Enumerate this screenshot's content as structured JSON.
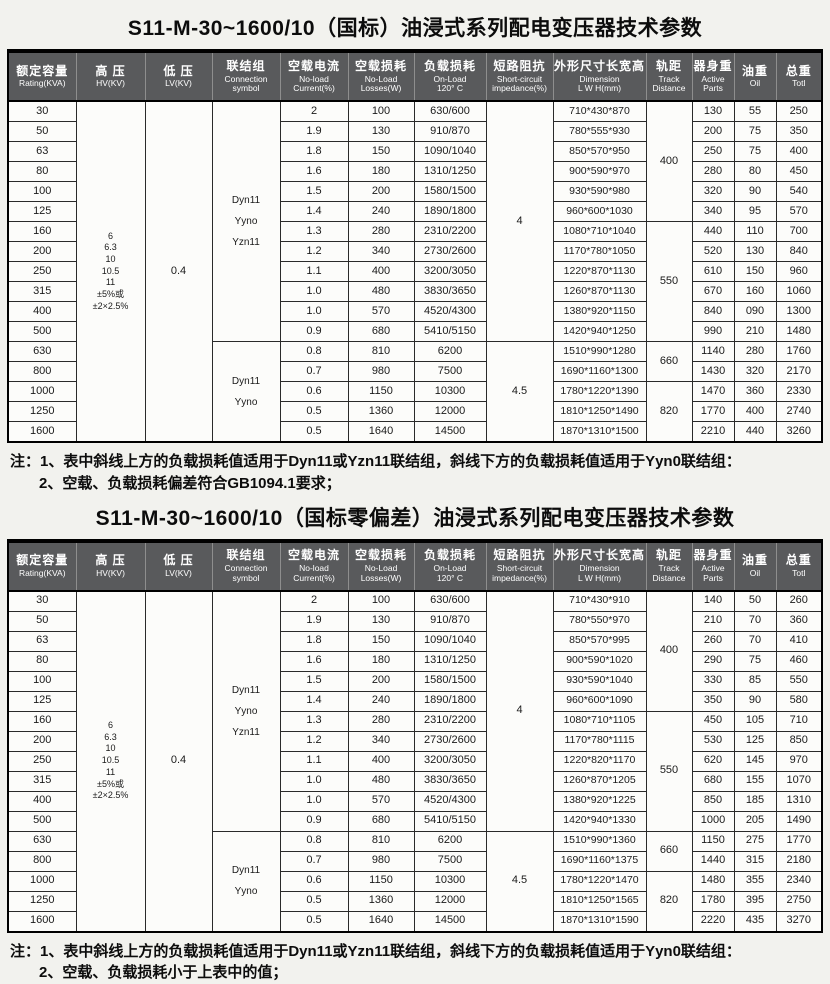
{
  "colors": {
    "header_bg": "#595a5c",
    "header_text": "#ffffff",
    "table_border": "#000000",
    "page_bg": "#f2f2ee"
  },
  "columns": [
    {
      "key": "rating",
      "zh": "额定容量",
      "en": "Rating(KVA)"
    },
    {
      "key": "hv",
      "zh": "高 压",
      "en": "HV(KV)"
    },
    {
      "key": "lv",
      "zh": "低 压",
      "en": "LV(KV)"
    },
    {
      "key": "connection",
      "zh": "联结组",
      "en": "Connection\nsymbol"
    },
    {
      "key": "noload_current",
      "zh": "空载电流",
      "en": "No-load\nCurrent(%)"
    },
    {
      "key": "noload_losses",
      "zh": "空载损耗",
      "en": "No-Load\nLosses(W)"
    },
    {
      "key": "onload",
      "zh": "负载损耗",
      "en": "On-Load\n120° C"
    },
    {
      "key": "impedance",
      "zh": "短路阻抗",
      "en": "Short-circuit\nimpedance(%)"
    },
    {
      "key": "dimension",
      "zh": "外形尺寸长宽高",
      "en": "Dimension\nL W H(mm)"
    },
    {
      "key": "track",
      "zh": "轨距",
      "en": "Track\nDistance"
    },
    {
      "key": "active_parts",
      "zh": "器身重",
      "en": "Active\nParts"
    },
    {
      "key": "oil",
      "zh": "油重",
      "en": "Oil"
    },
    {
      "key": "total",
      "zh": "总重",
      "en": "Totl"
    }
  ],
  "tables": [
    {
      "title": "S11-M-30~1600/10（国标）油浸式系列配电变压器技术参数",
      "rows": {
        "rating": [
          "30",
          "50",
          "63",
          "80",
          "100",
          "125",
          "160",
          "200",
          "250",
          "315",
          "400",
          "500",
          "630",
          "800",
          "1000",
          "1250",
          "1600"
        ],
        "noload_current": [
          "2",
          "1.9",
          "1.8",
          "1.6",
          "1.5",
          "1.4",
          "1.3",
          "1.2",
          "1.1",
          "1.0",
          "1.0",
          "0.9",
          "0.8",
          "0.7",
          "0.6",
          "0.5",
          "0.5"
        ],
        "noload_losses": [
          "100",
          "130",
          "150",
          "180",
          "200",
          "240",
          "280",
          "340",
          "400",
          "480",
          "570",
          "680",
          "810",
          "980",
          "1150",
          "1360",
          "1640"
        ],
        "onload": [
          "630/600",
          "910/870",
          "1090/1040",
          "1310/1250",
          "1580/1500",
          "1890/1800",
          "2310/2200",
          "2730/2600",
          "3200/3050",
          "3830/3650",
          "4520/4300",
          "5410/5150",
          "6200",
          "7500",
          "10300",
          "12000",
          "14500"
        ],
        "dimension": [
          "710*430*870",
          "780*555*930",
          "850*570*950",
          "900*590*970",
          "930*590*980",
          "960*600*1030",
          "1080*710*1040",
          "1170*780*1050",
          "1220*870*1130",
          "1260*870*1130",
          "1380*920*1150",
          "1420*940*1250",
          "1510*990*1280",
          "1690*1160*1300",
          "1780*1220*1390",
          "1810*1250*1490",
          "1870*1310*1500"
        ],
        "active_parts": [
          "130",
          "200",
          "250",
          "280",
          "320",
          "340",
          "440",
          "520",
          "610",
          "670",
          "840",
          "990",
          "1140",
          "1430",
          "1470",
          "1770",
          "2210"
        ],
        "oil": [
          "55",
          "75",
          "75",
          "80",
          "90",
          "95",
          "110",
          "130",
          "150",
          "160",
          "090",
          "210",
          "280",
          "320",
          "360",
          "400",
          "440"
        ],
        "total": [
          "250",
          "350",
          "400",
          "450",
          "540",
          "570",
          "700",
          "840",
          "960",
          "1060",
          "1300",
          "1480",
          "1760",
          "2170",
          "2330",
          "2740",
          "3260"
        ]
      },
      "merged": {
        "hv": {
          "rows": 17,
          "text": "6\n6.3\n10\n10.5\n11\n±5%或\n±2×2.5%"
        },
        "lv": {
          "rows": 17,
          "text": "0.4"
        },
        "connection": [
          {
            "rows": 12,
            "text": "Dyn11\nYyno\nYzn11"
          },
          {
            "rows": 5,
            "text": "Dyn11\nYyno"
          }
        ],
        "impedance": [
          {
            "rows": 12,
            "text": "4"
          },
          {
            "rows": 5,
            "text": "4.5"
          }
        ],
        "track": [
          {
            "rows": 6,
            "text": "400"
          },
          {
            "rows": 6,
            "text": "550"
          },
          {
            "rows": 2,
            "text": "660"
          },
          {
            "rows": 3,
            "text": "820"
          }
        ]
      },
      "notes": [
        "注：1、表中斜线上方的负载损耗值适用于Dyn11或Yzn11联结组，斜线下方的负载损耗值适用于Yyn0联结组：",
        "2、空载、负载损耗偏差符合GB1094.1要求；"
      ]
    },
    {
      "title": "S11-M-30~1600/10（国标零偏差）油浸式系列配电变压器技术参数",
      "rows": {
        "rating": [
          "30",
          "50",
          "63",
          "80",
          "100",
          "125",
          "160",
          "200",
          "250",
          "315",
          "400",
          "500",
          "630",
          "800",
          "1000",
          "1250",
          "1600"
        ],
        "noload_current": [
          "2",
          "1.9",
          "1.8",
          "1.6",
          "1.5",
          "1.4",
          "1.3",
          "1.2",
          "1.1",
          "1.0",
          "1.0",
          "0.9",
          "0.8",
          "0.7",
          "0.6",
          "0.5",
          "0.5"
        ],
        "noload_losses": [
          "100",
          "130",
          "150",
          "180",
          "200",
          "240",
          "280",
          "340",
          "400",
          "480",
          "570",
          "680",
          "810",
          "980",
          "1150",
          "1360",
          "1640"
        ],
        "onload": [
          "630/600",
          "910/870",
          "1090/1040",
          "1310/1250",
          "1580/1500",
          "1890/1800",
          "2310/2200",
          "2730/2600",
          "3200/3050",
          "3830/3650",
          "4520/4300",
          "5410/5150",
          "6200",
          "7500",
          "10300",
          "12000",
          "14500"
        ],
        "dimension": [
          "710*430*910",
          "780*550*970",
          "850*570*995",
          "900*590*1020",
          "930*590*1040",
          "960*600*1090",
          "1080*710*1105",
          "1170*780*1115",
          "1220*820*1170",
          "1260*870*1205",
          "1380*920*1225",
          "1420*940*1330",
          "1510*990*1360",
          "1690*1160*1375",
          "1780*1220*1470",
          "1810*1250*1565",
          "1870*1310*1590"
        ],
        "active_parts": [
          "140",
          "210",
          "260",
          "290",
          "330",
          "350",
          "450",
          "530",
          "620",
          "680",
          "850",
          "1000",
          "1150",
          "1440",
          "1480",
          "1780",
          "2220"
        ],
        "oil": [
          "50",
          "70",
          "70",
          "75",
          "85",
          "90",
          "105",
          "125",
          "145",
          "155",
          "185",
          "205",
          "275",
          "315",
          "355",
          "395",
          "435"
        ],
        "total": [
          "260",
          "360",
          "410",
          "460",
          "550",
          "580",
          "710",
          "850",
          "970",
          "1070",
          "1310",
          "1490",
          "1770",
          "2180",
          "2340",
          "2750",
          "3270"
        ]
      },
      "merged": {
        "hv": {
          "rows": 17,
          "text": "6\n6.3\n10\n10.5\n11\n±5%或\n±2×2.5%"
        },
        "lv": {
          "rows": 17,
          "text": "0.4"
        },
        "connection": [
          {
            "rows": 12,
            "text": "Dyn11\nYyno\nYzn11"
          },
          {
            "rows": 5,
            "text": "Dyn11\nYyno"
          }
        ],
        "impedance": [
          {
            "rows": 12,
            "text": "4"
          },
          {
            "rows": 5,
            "text": "4.5"
          }
        ],
        "track": [
          {
            "rows": 6,
            "text": "400"
          },
          {
            "rows": 6,
            "text": "550"
          },
          {
            "rows": 2,
            "text": "660"
          },
          {
            "rows": 3,
            "text": "820"
          }
        ]
      },
      "notes": [
        "注：1、表中斜线上方的负载损耗值适用于Dyn11或Yzn11联结组，斜线下方的负载损耗值适用于Yyn0联结组：",
        "2、空载、负载损耗小于上表中的值；"
      ]
    }
  ]
}
